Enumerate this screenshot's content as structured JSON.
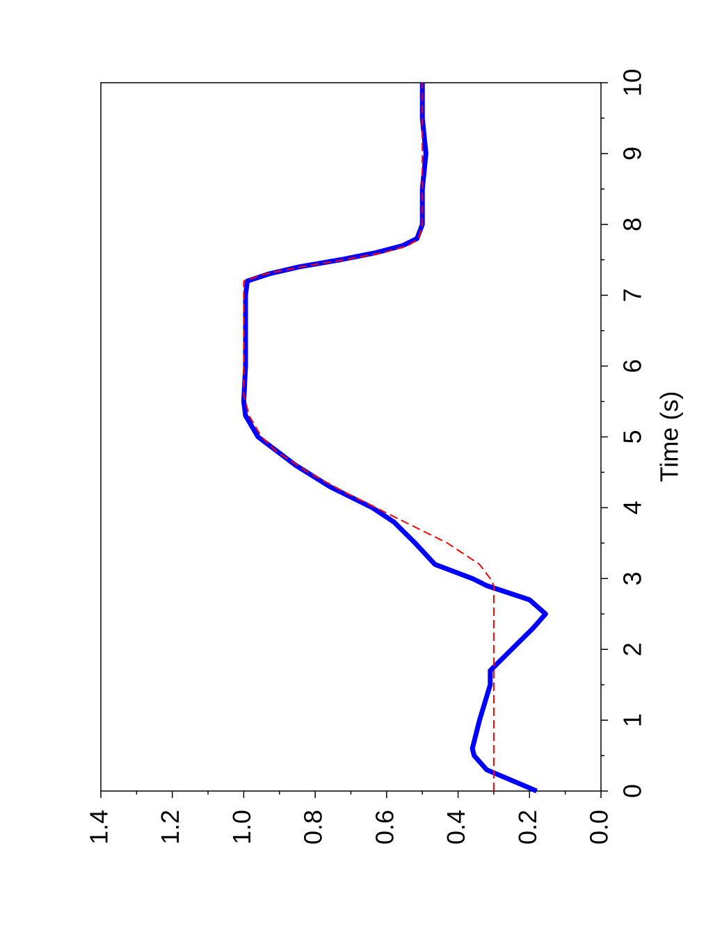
{
  "chart_data": {
    "type": "line",
    "xlabel": "Time (s)",
    "xlim": [
      0,
      10
    ],
    "xticks": [
      0,
      1,
      2,
      3,
      4,
      5,
      6,
      7,
      8,
      9,
      10
    ],
    "xminorticks": [
      0.5,
      1.5,
      2.5,
      3.5,
      4.5,
      5.5,
      6.5,
      7.5,
      8.5,
      9.5
    ],
    "ylim": [
      0,
      1.4
    ],
    "yticks": [
      {
        "value": 0,
        "label": "0.0"
      },
      0.2,
      0.4,
      0.6,
      0.8,
      {
        "value": 1,
        "label": "1.0"
      },
      1.2,
      1.4
    ],
    "yminorticks": [
      0.1,
      0.3,
      0.5,
      0.7,
      0.9,
      1.1,
      1.3
    ],
    "rotated": true,
    "series": [
      {
        "color": "#0000ff",
        "style": "solid",
        "x": [
          0,
          0.3,
          0.5,
          0.6,
          1,
          1.5,
          1.7,
          2,
          2.3,
          2.5,
          2.7,
          2.9,
          3,
          3.2,
          3.5,
          3.8,
          4,
          4.3,
          4.6,
          5,
          5.3,
          5.5,
          6,
          7,
          7.2,
          7.3,
          7.4,
          7.5,
          7.6,
          7.7,
          7.8,
          8,
          8.5,
          9,
          9.5,
          10
        ],
        "values": [
          0.18,
          0.32,
          0.355,
          0.36,
          0.34,
          0.31,
          0.31,
          0.25,
          0.19,
          0.155,
          0.2,
          0.32,
          0.36,
          0.465,
          0.52,
          0.58,
          0.64,
          0.76,
          0.855,
          0.96,
          0.995,
          1.0,
          0.995,
          0.995,
          0.99,
          0.93,
          0.845,
          0.73,
          0.63,
          0.555,
          0.515,
          0.5,
          0.5,
          0.49,
          0.5,
          0.5
        ]
      },
      {
        "color": "#ff0000",
        "style": "dashed",
        "x": [
          0,
          1,
          2,
          2.9,
          3,
          3.2,
          3.5,
          3.8,
          4,
          4.2,
          4.5,
          4.8,
          5,
          5.3,
          5.6,
          7.2,
          7.3,
          7.4,
          7.5,
          7.6,
          7.7,
          7.8,
          8,
          10
        ],
        "values": [
          0.3,
          0.3,
          0.3,
          0.3,
          0.31,
          0.34,
          0.43,
          0.55,
          0.63,
          0.71,
          0.82,
          0.91,
          0.95,
          0.985,
          1.0,
          1.0,
          0.94,
          0.84,
          0.72,
          0.61,
          0.54,
          0.51,
          0.5,
          0.5
        ]
      }
    ]
  }
}
